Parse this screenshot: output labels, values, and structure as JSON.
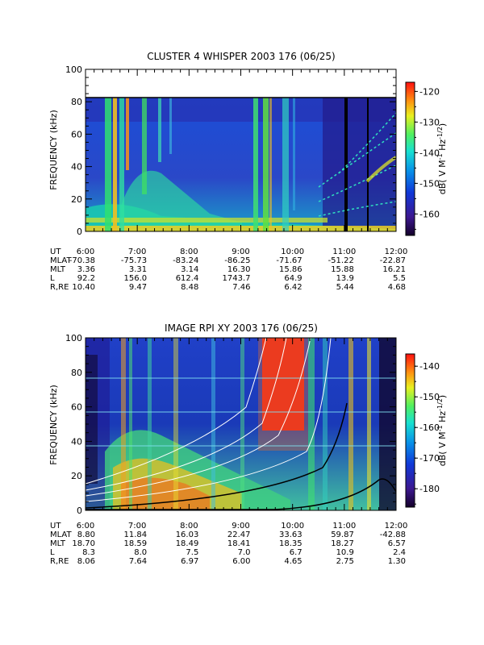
{
  "chart_data": [
    {
      "type": "heatmap",
      "title": "CLUSTER 4 WHISPER 2003 176 (06/25)",
      "ylabel": "FREQUENCY (kHz)",
      "ylim": [
        0,
        100
      ],
      "yticks": [
        "0",
        "20",
        "40",
        "60",
        "80",
        "100"
      ],
      "data_max_frequency": 80,
      "xlim": [
        "6:00",
        "12:00"
      ],
      "colorbar": {
        "label": "dB( V M-1 Hz-1/2)",
        "range": [
          -167,
          -117
        ],
        "ticks": [
          "-120",
          "-130",
          "-140",
          "-150",
          "-160"
        ]
      },
      "ephemeris": {
        "rows": [
          "UT",
          "MLAT",
          "MLT",
          "L",
          "R,RE"
        ],
        "UT": [
          "6:00",
          "7:00",
          "8:00",
          "9:00",
          "10:00",
          "11:00",
          "12:00"
        ],
        "MLAT": [
          "-70.38",
          "-75.73",
          "-83.24",
          "-86.25",
          "-71.67",
          "-51.22",
          "-22.87"
        ],
        "MLT": [
          "3.36",
          "3.31",
          "3.14",
          "16.30",
          "15.86",
          "15.88",
          "16.21"
        ],
        "L": [
          "92.2",
          "156.0",
          "612.4",
          "1743.7",
          "64.9",
          "13.9",
          "5.5"
        ],
        "R,RE": [
          "10.40",
          "9.47",
          "8.48",
          "7.46",
          "6.42",
          "5.44",
          "4.68"
        ]
      }
    },
    {
      "type": "heatmap",
      "title": "IMAGE RPI XY 2003 176 (06/25)",
      "ylabel": "FREQUENCY (kHz)",
      "ylim": [
        0,
        100
      ],
      "yticks": [
        "0",
        "20",
        "40",
        "60",
        "80",
        "100"
      ],
      "xlim": [
        "6:00",
        "12:00"
      ],
      "colorbar": {
        "label": "dB( V M-1 Hz-1/2)",
        "range": [
          -186,
          -136
        ],
        "ticks": [
          "-140",
          "-150",
          "-160",
          "-170",
          "-180"
        ]
      },
      "ephemeris": {
        "rows": [
          "UT",
          "MLAT",
          "MLT",
          "L",
          "R,RE"
        ],
        "UT": [
          "6:00",
          "7:00",
          "8:00",
          "9:00",
          "10:00",
          "11:00",
          "12:00"
        ],
        "MLAT": [
          "8.80",
          "11.84",
          "16.03",
          "22.47",
          "33.63",
          "59.87",
          "-42.88"
        ],
        "MLT": [
          "18.70",
          "18.59",
          "18.49",
          "18.41",
          "18.35",
          "18.27",
          "6.57"
        ],
        "L": [
          "8.3",
          "8.0",
          "7.5",
          "7.0",
          "6.7",
          "10.9",
          "2.4"
        ],
        "R,RE": [
          "8.06",
          "7.64",
          "6.97",
          "6.00",
          "4.65",
          "2.75",
          "1.30"
        ]
      }
    }
  ]
}
